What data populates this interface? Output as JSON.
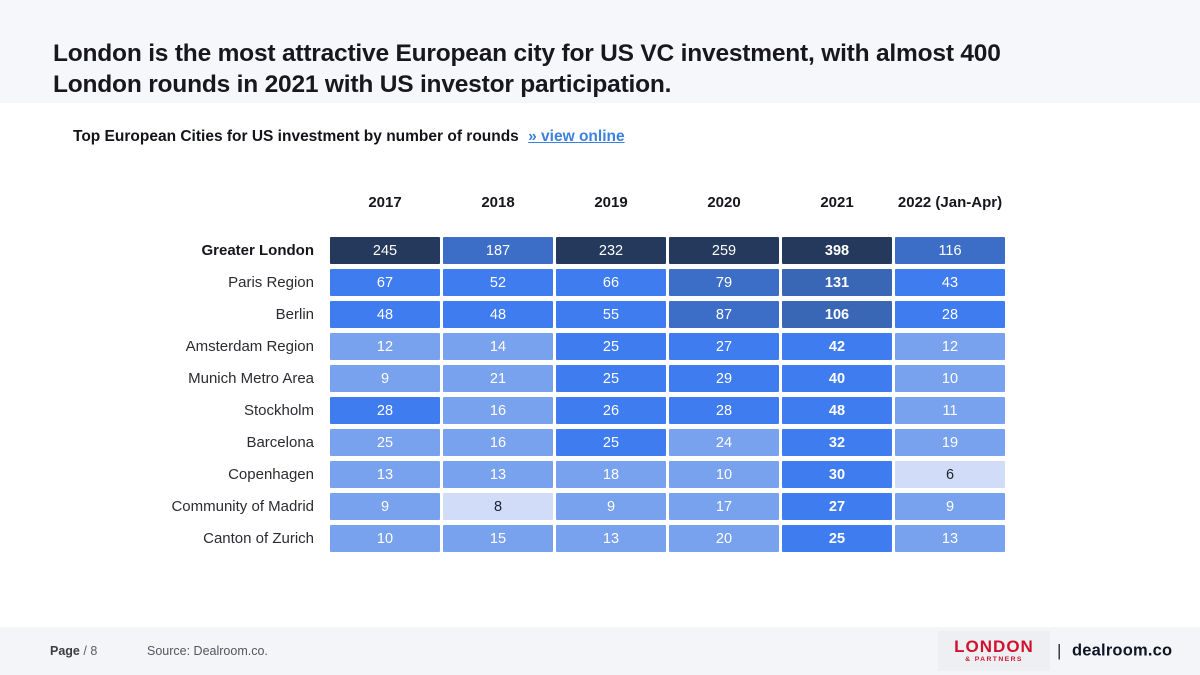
{
  "slide": {
    "title_line1": "London is the most attractive European city for US VC investment, with almost 400",
    "title_line2": "London rounds in 2021 with US investor participation.",
    "subtitle": "Top European Cities for US investment by number of rounds",
    "subtitle_link": "» view online"
  },
  "chart_data": {
    "type": "heatmap",
    "title": "Top European Cities for US investment by number of rounds",
    "columns": [
      "2017",
      "2018",
      "2019",
      "2020",
      "2021",
      "2022 (Jan-Apr)"
    ],
    "bold_column": "2021",
    "rows": [
      {
        "city": "Greater London",
        "bold": true,
        "values": [
          245,
          187,
          232,
          259,
          398,
          116
        ],
        "shades": [
          "navy",
          "steel",
          "navy",
          "navy",
          "navy",
          "steel"
        ]
      },
      {
        "city": "Paris Region",
        "bold": false,
        "values": [
          67,
          52,
          66,
          79,
          131,
          43
        ],
        "shades": [
          "bright",
          "bright",
          "bright",
          "steel",
          "steeldark",
          "bright"
        ]
      },
      {
        "city": "Berlin",
        "bold": false,
        "values": [
          48,
          48,
          55,
          87,
          106,
          28
        ],
        "shades": [
          "bright",
          "bright",
          "bright",
          "steel",
          "steeldark",
          "bright"
        ]
      },
      {
        "city": "Amsterdam Region",
        "bold": false,
        "values": [
          12,
          14,
          25,
          27,
          42,
          12
        ],
        "shades": [
          "light",
          "light",
          "bright",
          "bright",
          "bright",
          "light"
        ]
      },
      {
        "city": "Munich Metro Area",
        "bold": false,
        "values": [
          9,
          21,
          25,
          29,
          40,
          10
        ],
        "shades": [
          "light",
          "light",
          "bright",
          "bright",
          "bright",
          "light"
        ]
      },
      {
        "city": "Stockholm",
        "bold": false,
        "values": [
          28,
          16,
          26,
          28,
          48,
          11
        ],
        "shades": [
          "bright",
          "light",
          "bright",
          "bright",
          "bright",
          "light"
        ]
      },
      {
        "city": "Barcelona",
        "bold": false,
        "values": [
          25,
          16,
          25,
          24,
          32,
          19
        ],
        "shades": [
          "light",
          "light",
          "bright",
          "light",
          "bright",
          "light"
        ]
      },
      {
        "city": "Copenhagen",
        "bold": false,
        "values": [
          13,
          13,
          18,
          10,
          30,
          6
        ],
        "shades": [
          "light",
          "light",
          "light",
          "light",
          "bright",
          "pale"
        ]
      },
      {
        "city": "Community of Madrid",
        "bold": false,
        "values": [
          9,
          8,
          9,
          17,
          27,
          9
        ],
        "shades": [
          "light",
          "pale",
          "light",
          "light",
          "bright",
          "light"
        ]
      },
      {
        "city": "Canton of Zurich",
        "bold": false,
        "values": [
          10,
          15,
          13,
          20,
          25,
          13
        ],
        "shades": [
          "light",
          "light",
          "light",
          "light",
          "bright",
          "light"
        ]
      }
    ],
    "palette": {
      "navy": "#24395C",
      "steel": "#3C6EC8",
      "steeldark": "#3A66B6",
      "bright": "#3E7CEF",
      "light": "#78A2ED",
      "pale": "#D0DCF8"
    },
    "pale_text_color": "#1C2230",
    "cell_text_color": "#FFFFFF",
    "legend_position": "none",
    "grid": false
  },
  "footer": {
    "page_label": "Page",
    "page_number": "/ 8",
    "source": "Source: Dealroom.co.",
    "logo_primary": "LONDON",
    "logo_secondary": "& PARTNERS",
    "separator": "|",
    "brand": "dealroom.co"
  },
  "colors": {
    "title_band": "#F6F7FB",
    "footer_band": "#F4F5F8",
    "link_accent": "#3D80E0",
    "logo_red": "#D0122D",
    "brand_dark": "#0E1626"
  }
}
